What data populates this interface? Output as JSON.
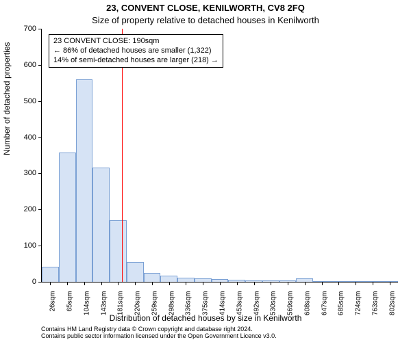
{
  "title": "23, CONVENT CLOSE, KENILWORTH, CV8 2FQ",
  "subtitle": "Size of property relative to detached houses in Kenilworth",
  "ylabel": "Number of detached properties",
  "xlabel": "Distribution of detached houses by size in Kenilworth",
  "chart": {
    "type": "histogram",
    "background_color": "#ffffff",
    "axis_color": "#000000",
    "bar_fill": "#d6e3f5",
    "bar_border": "#7aa0d4",
    "bar_border_width": 1,
    "x_categories_sqm": [
      26,
      65,
      104,
      143,
      181,
      220,
      259,
      298,
      336,
      375,
      414,
      453,
      492,
      530,
      569,
      608,
      647,
      685,
      724,
      763,
      802
    ],
    "bar_values": [
      42,
      358,
      560,
      316,
      170,
      55,
      25,
      18,
      12,
      10,
      8,
      6,
      4,
      4,
      3,
      10,
      2,
      2,
      2,
      2,
      2
    ],
    "ylim": [
      0,
      700
    ],
    "ytick_step": 100,
    "tick_fontsize": 11,
    "label_fontsize": 12,
    "title_fontsize": 13
  },
  "marker": {
    "value_sqm": 190,
    "color": "#ff0000",
    "width": 1
  },
  "annotation": {
    "line1": "23 CONVENT CLOSE: 190sqm",
    "line2": "← 86% of detached houses are smaller (1,322)",
    "line3": "14% of semi-detached houses are larger (218) →",
    "border_color": "#000000",
    "background_color": "#ffffff",
    "fontsize": 11
  },
  "footer": {
    "line1": "Contains HM Land Registry data © Crown copyright and database right 2024.",
    "line2": "Contains public sector information licensed under the Open Government Licence v3.0."
  }
}
